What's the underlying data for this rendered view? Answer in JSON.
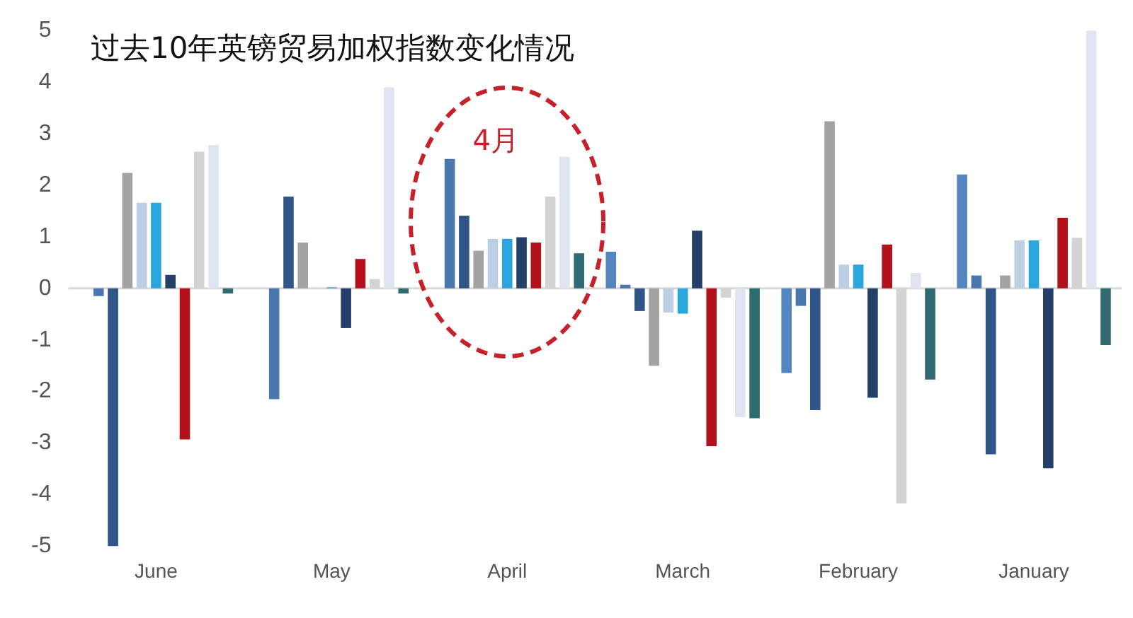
{
  "chart_data": {
    "type": "bar",
    "title": "过去10年英镑贸易加权指数变化情况",
    "categories": [
      "June",
      "May",
      "April",
      "March",
      "February",
      "January"
    ],
    "ylim": [
      -5,
      5
    ],
    "yticks": [
      -5,
      -4,
      -3,
      -2,
      -1,
      0,
      1,
      2,
      3,
      4,
      5
    ],
    "legend": false,
    "annotations": [
      "4月"
    ],
    "series": [
      {
        "color": "#5585c0",
        "values": [
          0,
          0,
          0,
          0.71,
          -1.64,
          2.21
        ]
      },
      {
        "color": "#4a78ad",
        "values": [
          -0.15,
          -2.15,
          2.51,
          0.07,
          -0.34,
          0.25
        ]
      },
      {
        "color": "#2f5686",
        "values": [
          -5.0,
          1.78,
          1.41,
          -0.44,
          -2.36,
          -3.22
        ]
      },
      {
        "color": "#a3a3a3",
        "values": [
          2.24,
          0.89,
          0.73,
          -1.5,
          3.24,
          0.25
        ]
      },
      {
        "color": "#bccfe3",
        "values": [
          1.66,
          null,
          0.96,
          -0.47,
          0.46,
          0.93
        ]
      },
      {
        "color": "#2aa6df",
        "values": [
          1.66,
          0.02,
          0.96,
          -0.49,
          0.46,
          0.93
        ]
      },
      {
        "color": "#24406a",
        "values": [
          0.26,
          -0.77,
          0.99,
          1.12,
          -2.12,
          -3.49
        ]
      },
      {
        "color": "#b3121c",
        "values": [
          -2.93,
          0.57,
          0.89,
          -3.06,
          0.85,
          1.37
        ]
      },
      {
        "color": "#d3d3d3",
        "values": [
          2.65,
          0.18,
          1.78,
          -0.18,
          -4.17,
          0.98
        ]
      },
      {
        "color": "#dfe4f0",
        "values": [
          2.78,
          3.9,
          2.55,
          -2.5,
          0.3,
          5.0
        ]
      },
      {
        "color": "#2e6a70",
        "values": [
          -0.1,
          -0.1,
          0.68,
          -2.52,
          -1.77,
          -1.1
        ]
      }
    ]
  }
}
